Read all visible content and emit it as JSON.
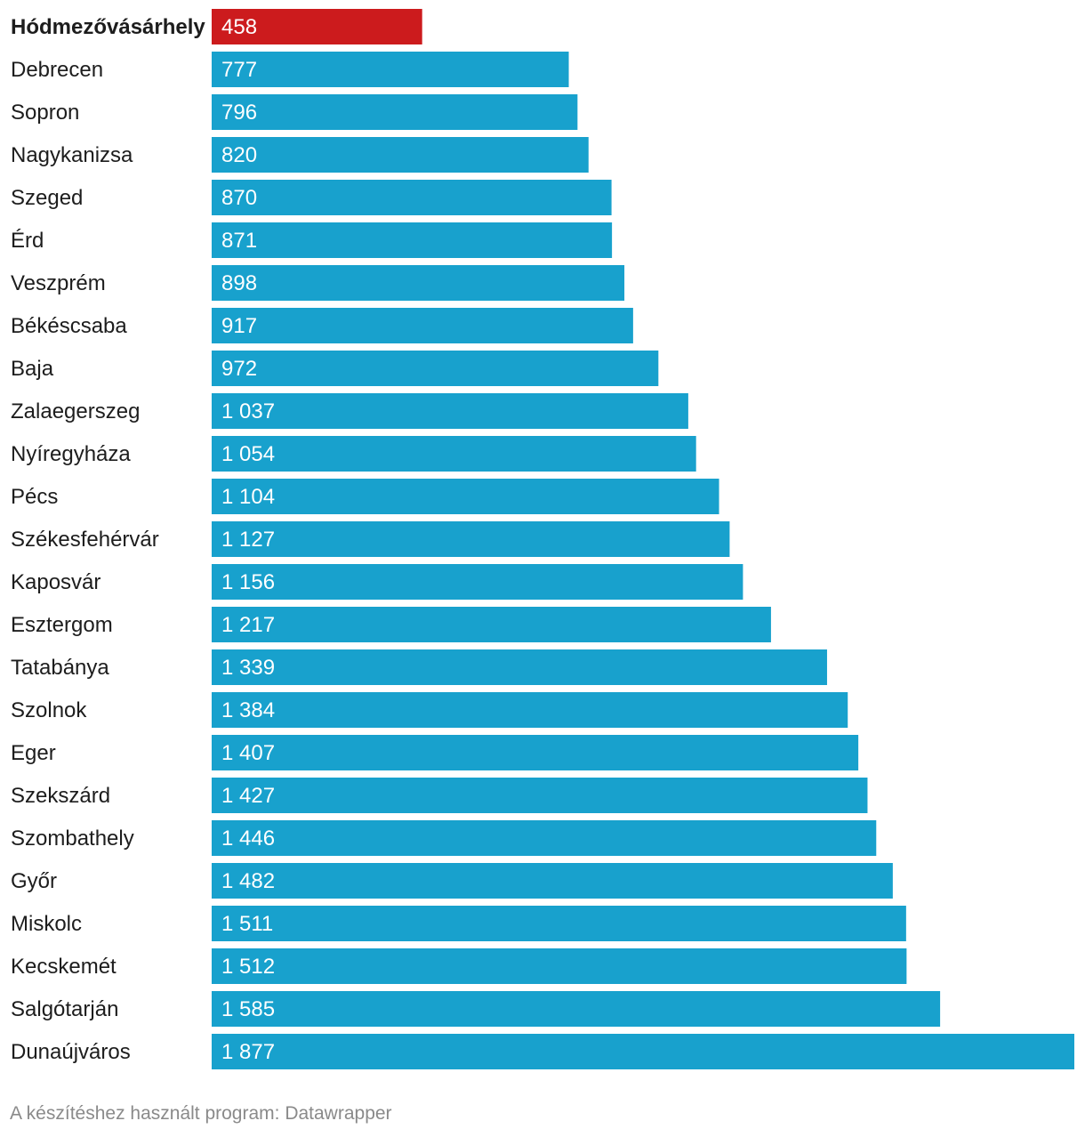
{
  "chart_data": {
    "type": "bar",
    "orientation": "horizontal",
    "title": "",
    "xlabel": "",
    "ylabel": "",
    "xlim": [
      0,
      1877
    ],
    "grid": false,
    "categories": [
      "Hódmezővásárhely",
      "Debrecen",
      "Sopron",
      "Nagykanizsa",
      "Szeged",
      "Érd",
      "Veszprém",
      "Békéscsaba",
      "Baja",
      "Zalaegerszeg",
      "Nyíregyháza",
      "Pécs",
      "Székesfehérvár",
      "Kaposvár",
      "Esztergom",
      "Tatabánya",
      "Szolnok",
      "Eger",
      "Szekszárd",
      "Szombathely",
      "Győr",
      "Miskolc",
      "Kecskemét",
      "Salgótarján",
      "Dunaújváros"
    ],
    "values": [
      458,
      777,
      796,
      820,
      870,
      871,
      898,
      917,
      972,
      1037,
      1054,
      1104,
      1127,
      1156,
      1217,
      1339,
      1384,
      1407,
      1427,
      1446,
      1482,
      1511,
      1512,
      1585,
      1877
    ],
    "value_labels": [
      "458",
      "777",
      "796",
      "820",
      "870",
      "871",
      "898",
      "917",
      "972",
      "1 037",
      "1 054",
      "1 104",
      "1 127",
      "1 156",
      "1 217",
      "1 339",
      "1 384",
      "1 407",
      "1 427",
      "1 446",
      "1 482",
      "1 511",
      "1 512",
      "1 585",
      "1 877"
    ],
    "highlight_index": 0,
    "colors": {
      "bar": "#18a1cd",
      "highlight": "#cc1b1d"
    }
  },
  "footer": {
    "text": "A készítéshez használt program: Datawrapper"
  }
}
